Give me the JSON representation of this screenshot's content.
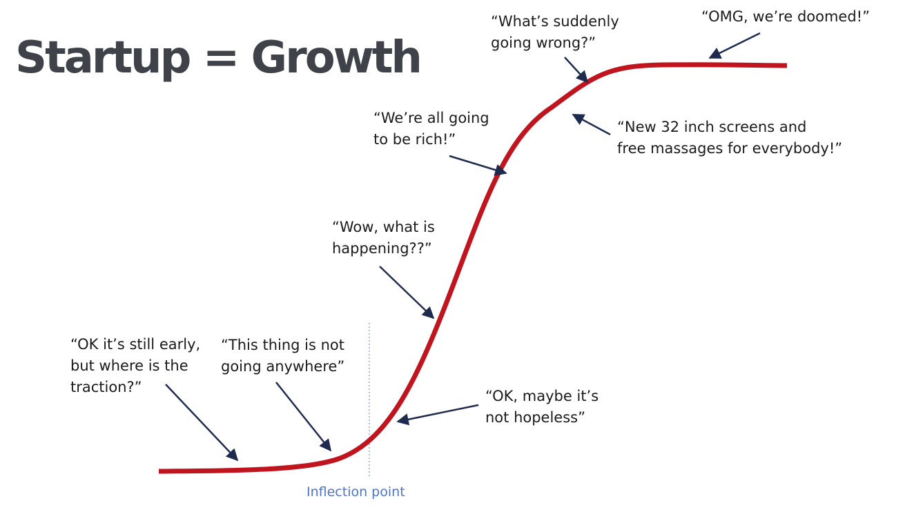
{
  "slide": {
    "title": "Startup = Growth"
  },
  "diagram": {
    "curve_color": "#c0141f",
    "arrow_color": "#1f2b4e",
    "inflection_line_color": "#7a9ad6",
    "inflection_label": "Inflection point",
    "annotations": [
      {
        "id": "early-traction",
        "lines": [
          "“OK it’s still early,",
          "but where is the",
          "traction?”"
        ]
      },
      {
        "id": "not-going-anywhere",
        "lines": [
          "“This thing is not",
          "going anywhere”"
        ]
      },
      {
        "id": "not-hopeless",
        "lines": [
          "“OK, maybe it’s",
          "not hopeless”"
        ]
      },
      {
        "id": "what-is-happening",
        "lines": [
          "“Wow, what is",
          "happening??”"
        ]
      },
      {
        "id": "going-to-be-rich",
        "lines": [
          "“We’re all going",
          "to be rich!”"
        ]
      },
      {
        "id": "screens-and-massages",
        "lines": [
          "“New 32 inch screens and",
          "free massages for everybody!”"
        ]
      },
      {
        "id": "suddenly-going-wrong",
        "lines": [
          "“What’s suddenly",
          "going wrong?”"
        ]
      },
      {
        "id": "doomed",
        "lines": [
          "“OMG, we’re doomed!”"
        ]
      }
    ]
  }
}
